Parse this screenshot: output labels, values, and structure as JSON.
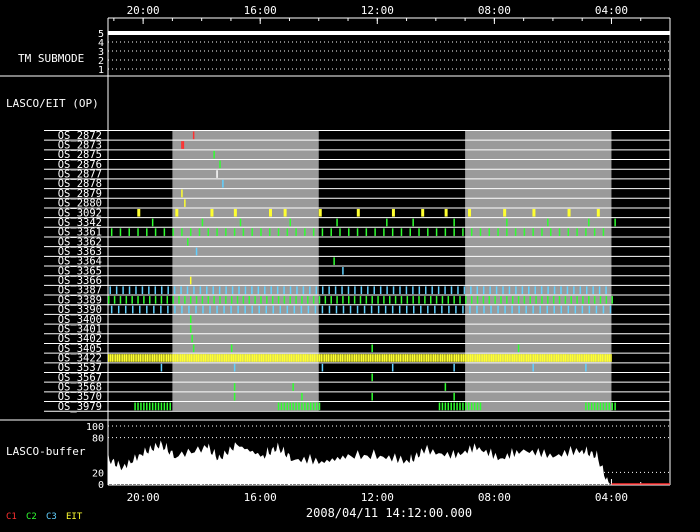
{
  "chart_data": {
    "type": "timeline",
    "time_axis": {
      "tick_labels": [
        "20:00",
        "16:00",
        "12:00",
        "08:00",
        "04:00"
      ],
      "tick_hours_before_start": [
        1.2,
        5.2,
        9.2,
        13.2,
        17.2
      ],
      "span_hours": 19.2,
      "direction": "reverse"
    },
    "timestamp": "2008/04/11 14:12:00.000",
    "shaded_periods": [
      [
        2.2,
        7.2
      ],
      [
        12.2,
        17.2
      ]
    ],
    "tm_submode": {
      "label": "TM SUBMODE",
      "levels": [
        "5",
        "4",
        "3",
        "2",
        "1"
      ],
      "value": 5
    },
    "lasco_eit_label": "LASCO/EIT (OP)",
    "rows": [
      {
        "name": "OS_2872",
        "color": "#ff3030",
        "events": [
          2.9
        ]
      },
      {
        "name": "OS_2873",
        "color": "#ff3030",
        "events": [
          2.5,
          2.55
        ]
      },
      {
        "name": "OS_2875",
        "color": "#30ff30",
        "events": [
          3.6
        ]
      },
      {
        "name": "OS_2876",
        "color": "#30ff30",
        "events": [
          3.8
        ]
      },
      {
        "name": "OS_2877",
        "color": "#ffffff",
        "events": [
          3.7
        ]
      },
      {
        "name": "OS_2878",
        "color": "#60d0ff",
        "events": [
          3.9
        ]
      },
      {
        "name": "OS_2879",
        "color": "#ffff30",
        "events": [
          2.5
        ]
      },
      {
        "name": "OS_2880",
        "color": "#ffff30",
        "events": [
          2.6
        ]
      },
      {
        "name": "OS_3092",
        "color": "#ffff30",
        "events": [
          1.0,
          2.3,
          3.5,
          4.3,
          5.5,
          6.0,
          7.2,
          8.5,
          9.7,
          10.7,
          11.5,
          12.3,
          13.5,
          14.5,
          15.7,
          16.7
        ]
      },
      {
        "name": "OS_3342",
        "color": "#30ff30",
        "events": [
          1.5,
          3.2,
          4.5,
          6.2,
          7.8,
          9.5,
          10.4,
          11.8,
          13.6,
          15.0,
          16.4,
          17.3
        ]
      },
      {
        "name": "OS_3361",
        "color": "#30ff30",
        "periodic": {
          "start": 0.1,
          "end": 17.1,
          "step": 0.3
        }
      },
      {
        "name": "OS_3362",
        "color": "#30ff30",
        "events": [
          2.7
        ]
      },
      {
        "name": "OS_3363",
        "color": "#60d0ff",
        "events": [
          3.0
        ]
      },
      {
        "name": "OS_3364",
        "color": "#30ff30",
        "events": [
          7.7
        ]
      },
      {
        "name": "OS_3365",
        "color": "#60d0ff",
        "events": [
          8.0
        ]
      },
      {
        "name": "OS_3366",
        "color": "#ffff30",
        "events": [
          2.8
        ]
      },
      {
        "name": "OS_3387",
        "color": "#60d0ff",
        "periodic": {
          "start": 0.05,
          "end": 17.2,
          "step": 0.22
        }
      },
      {
        "name": "OS_3389",
        "color": "#30ff30",
        "periodic": {
          "start": 0.0,
          "end": 17.2,
          "step": 0.2
        }
      },
      {
        "name": "OS_3390",
        "color": "#60d0ff",
        "periodic": {
          "start": 0.1,
          "end": 17.2,
          "step": 0.24
        }
      },
      {
        "name": "OS_3400",
        "color": "#30ff30",
        "events": [
          2.8
        ]
      },
      {
        "name": "OS_3401",
        "color": "#30ff30",
        "events": [
          2.8
        ]
      },
      {
        "name": "OS_3402",
        "color": "#30ff30",
        "events": [
          2.85
        ]
      },
      {
        "name": "OS_3405",
        "color": "#30ff30",
        "events": [
          2.9,
          4.2,
          9.0,
          14.0
        ]
      },
      {
        "name": "OS_3422",
        "color": "#ffff30",
        "periodic": {
          "start": 0.0,
          "end": 17.2,
          "step": 0.06
        }
      },
      {
        "name": "OS_3537",
        "color": "#60d0ff",
        "events": [
          1.8,
          4.3,
          7.3,
          9.7,
          11.8,
          14.5,
          16.3
        ]
      },
      {
        "name": "OS_3567",
        "color": "#30ff30",
        "events": [
          9.0
        ]
      },
      {
        "name": "OS_3568",
        "color": "#30ff30",
        "events": [
          4.3,
          6.3,
          11.5
        ]
      },
      {
        "name": "OS_3570",
        "color": "#30ff30",
        "events": [
          4.3,
          6.6,
          9.0,
          11.8
        ]
      },
      {
        "name": "OS_3979",
        "color": "#30ff30",
        "bursts": [
          [
            0.9,
            2.2,
            0.1
          ],
          [
            5.8,
            7.2,
            0.1
          ],
          [
            11.3,
            12.7,
            0.1
          ],
          [
            16.3,
            17.4,
            0.1
          ]
        ]
      }
    ],
    "buffer": {
      "label": "LASCO-buffer",
      "ytick_labels": [
        "100",
        "80",
        "20",
        "0"
      ],
      "yticks": [
        100,
        80,
        20,
        0
      ],
      "ylim": [
        0,
        100
      ],
      "peaks": [
        [
          0.0,
          55
        ],
        [
          0.5,
          40
        ],
        [
          1.2,
          65
        ],
        [
          1.8,
          80
        ],
        [
          2.3,
          60
        ],
        [
          3.4,
          75
        ],
        [
          3.8,
          55
        ],
        [
          4.4,
          80
        ],
        [
          5.3,
          60
        ],
        [
          5.8,
          75
        ],
        [
          6.3,
          55
        ],
        [
          7.3,
          50
        ],
        [
          8.2,
          60
        ],
        [
          9.3,
          60
        ],
        [
          10.3,
          50
        ],
        [
          10.8,
          70
        ],
        [
          11.8,
          60
        ],
        [
          12.6,
          75
        ],
        [
          13.4,
          55
        ],
        [
          14.2,
          70
        ],
        [
          15.2,
          60
        ],
        [
          16.2,
          70
        ],
        [
          16.7,
          60
        ],
        [
          17.2,
          0
        ]
      ]
    },
    "legend": [
      {
        "label": "C1",
        "color": "#ff3030"
      },
      {
        "label": "C2",
        "color": "#30ff30"
      },
      {
        "label": "C3",
        "color": "#60d0ff"
      },
      {
        "label": "EIT",
        "color": "#ffff30"
      }
    ]
  }
}
